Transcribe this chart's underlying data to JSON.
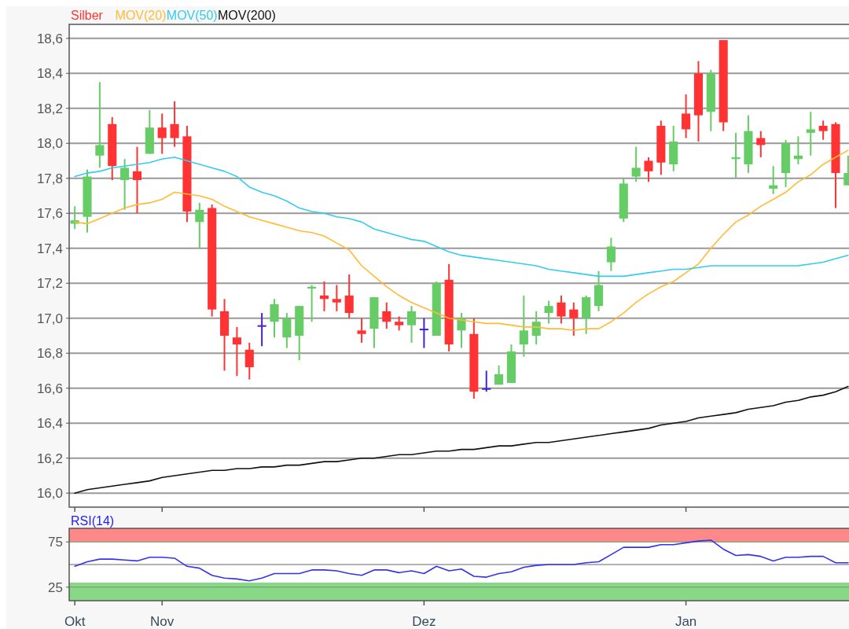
{
  "chart_data": [
    {
      "type": "candlestick",
      "categories": [
        null,
        null,
        null,
        null,
        null,
        null,
        null,
        null,
        null,
        null,
        null,
        null,
        null,
        null,
        null,
        null,
        null,
        null,
        null,
        null,
        null,
        null,
        null,
        null,
        null,
        null,
        null,
        null,
        null,
        null,
        null,
        null,
        null,
        null,
        null,
        null,
        null,
        null,
        null,
        null,
        null,
        null,
        null,
        null,
        null,
        null,
        null,
        null,
        null,
        null,
        null,
        null,
        null,
        null,
        null,
        null,
        null,
        null,
        null,
        null,
        null,
        null,
        null
      ],
      "series": [
        {
          "name": "Silber",
          "color": "#ff3333",
          "colors": [
            "#66cc66",
            "#66cc66",
            "#66cc66",
            "#ff3333",
            "#66cc66",
            "#ff3333",
            "#66cc66",
            "#ff3333",
            "#ff3333",
            "#ff3333",
            "#66cc66",
            "#ff3333",
            "#ff3333",
            "#ff3333",
            "#ff3333",
            "#4422cc",
            "#66cc66",
            "#66cc66",
            "#66cc66",
            "#66cc66",
            "#ff3333",
            "#ff3333",
            "#ff3333",
            "#ff3333",
            "#66cc66",
            "#ff3333",
            "#ff3333",
            "#66cc66",
            "#4422cc",
            "#66cc66",
            "#ff3333",
            "#66cc66",
            "#ff3333",
            "#4422cc",
            "#66cc66",
            "#66cc66",
            "#66cc66",
            "#66cc66",
            "#66cc66",
            "#ff3333",
            "#ff3333",
            "#66cc66",
            "#66cc66",
            "#66cc66",
            "#66cc66",
            "#66cc66",
            "#ff3333",
            "#ff3333",
            "#66cc66",
            "#ff3333",
            "#ff3333",
            "#66cc66",
            "#ff3333",
            "#66cc66",
            "#66cc66",
            "#ff3333",
            "#66cc66",
            "#66cc66",
            "#66cc66",
            "#66cc66",
            "#ff3333",
            "#ff3333",
            "#66cc66"
          ],
          "ohlc": [
            [
              17.54,
              17.64,
              17.51,
              17.56
            ],
            [
              17.58,
              17.85,
              17.49,
              17.81
            ],
            [
              17.93,
              18.35,
              17.86,
              17.99
            ],
            [
              18.11,
              18.15,
              17.79,
              17.87
            ],
            [
              17.79,
              17.91,
              17.62,
              17.86
            ],
            [
              17.84,
              17.98,
              17.6,
              17.79
            ],
            [
              17.94,
              18.19,
              17.94,
              18.09
            ],
            [
              18.09,
              18.17,
              17.94,
              18.03
            ],
            [
              18.11,
              18.24,
              17.98,
              18.03
            ],
            [
              18.04,
              18.1,
              17.55,
              17.61
            ],
            [
              17.55,
              17.66,
              17.4,
              17.62
            ],
            [
              17.63,
              17.65,
              17.01,
              17.05
            ],
            [
              17.04,
              17.11,
              16.7,
              16.9
            ],
            [
              16.89,
              16.95,
              16.67,
              16.85
            ],
            [
              16.82,
              16.86,
              16.65,
              16.72
            ],
            [
              16.96,
              17.03,
              16.84,
              16.96
            ],
            [
              16.98,
              17.11,
              16.89,
              17.08
            ],
            [
              16.89,
              17.03,
              16.83,
              17.0
            ],
            [
              16.9,
              17.07,
              16.76,
              17.07
            ],
            [
              17.17,
              17.19,
              16.98,
              17.18
            ],
            [
              17.13,
              17.21,
              17.04,
              17.11
            ],
            [
              17.11,
              17.19,
              17.04,
              17.09
            ],
            [
              17.13,
              17.25,
              17.0,
              17.03
            ],
            [
              16.93,
              17.0,
              16.86,
              16.91
            ],
            [
              16.94,
              17.12,
              16.83,
              17.12
            ],
            [
              17.04,
              17.09,
              16.94,
              16.98
            ],
            [
              16.98,
              17.01,
              16.93,
              16.96
            ],
            [
              16.96,
              17.07,
              16.86,
              17.04
            ],
            [
              16.94,
              17.0,
              16.83,
              16.94
            ],
            [
              16.9,
              17.21,
              16.9,
              17.2
            ],
            [
              17.22,
              17.31,
              16.81,
              16.85
            ],
            [
              16.93,
              17.03,
              16.83,
              17.0
            ],
            [
              16.91,
              17.0,
              16.54,
              16.58
            ],
            [
              16.6,
              16.7,
              16.58,
              16.6
            ],
            [
              16.62,
              16.73,
              16.62,
              16.68
            ],
            [
              16.63,
              16.85,
              16.63,
              16.81
            ],
            [
              16.85,
              17.13,
              16.78,
              16.93
            ],
            [
              16.9,
              17.04,
              16.85,
              16.98
            ],
            [
              17.03,
              17.1,
              16.97,
              17.07
            ],
            [
              17.09,
              17.13,
              16.97,
              17.01
            ],
            [
              17.05,
              17.09,
              16.9,
              17.0
            ],
            [
              17.0,
              17.13,
              16.91,
              17.12
            ],
            [
              17.07,
              17.27,
              17.04,
              17.19
            ],
            [
              17.32,
              17.46,
              17.27,
              17.41
            ],
            [
              17.57,
              17.8,
              17.55,
              17.77
            ],
            [
              17.81,
              17.98,
              17.78,
              17.86
            ],
            [
              17.9,
              17.92,
              17.78,
              17.84
            ],
            [
              18.1,
              18.13,
              17.82,
              17.89
            ],
            [
              17.88,
              18.1,
              17.84,
              18.01
            ],
            [
              18.17,
              18.28,
              18.03,
              18.08
            ],
            [
              18.4,
              18.47,
              18.01,
              18.16
            ],
            [
              18.18,
              18.42,
              18.07,
              18.4
            ],
            [
              18.59,
              18.59,
              18.07,
              18.12
            ],
            [
              17.91,
              18.06,
              17.8,
              17.92
            ],
            [
              17.88,
              18.16,
              17.83,
              18.07
            ],
            [
              18.03,
              18.07,
              17.92,
              17.99
            ],
            [
              17.74,
              17.87,
              17.71,
              17.76
            ],
            [
              17.83,
              18.02,
              17.75,
              18.0
            ],
            [
              17.91,
              18.04,
              17.88,
              17.93
            ],
            [
              18.06,
              18.18,
              17.93,
              18.08
            ],
            [
              18.1,
              18.13,
              18.02,
              18.07
            ],
            [
              18.11,
              18.12,
              17.63,
              17.83
            ],
            [
              17.76,
              17.93,
              17.76,
              17.83
            ]
          ]
        },
        {
          "name": "MOV(20)",
          "type": "line",
          "color": "#ffbb33",
          "values": [
            17.55,
            17.54,
            17.57,
            17.6,
            17.63,
            17.65,
            17.66,
            17.68,
            17.72,
            17.71,
            17.7,
            17.68,
            17.64,
            17.61,
            17.58,
            17.56,
            17.54,
            17.52,
            17.5,
            17.49,
            17.47,
            17.43,
            17.39,
            17.3,
            17.24,
            17.18,
            17.13,
            17.09,
            17.06,
            17.03,
            17.0,
            16.99,
            16.98,
            16.97,
            16.97,
            16.96,
            16.95,
            16.95,
            16.94,
            16.94,
            16.93,
            16.94,
            16.94,
            16.98,
            17.03,
            17.09,
            17.14,
            17.18,
            17.21,
            17.26,
            17.31,
            17.4,
            17.48,
            17.55,
            17.59,
            17.64,
            17.68,
            17.72,
            17.78,
            17.82,
            17.88,
            17.92,
            17.96
          ]
        },
        {
          "name": "MOV(50)",
          "type": "line",
          "color": "#33ccee",
          "values": [
            17.81,
            17.83,
            17.84,
            17.86,
            17.87,
            17.88,
            17.89,
            17.91,
            17.92,
            17.9,
            17.88,
            17.86,
            17.84,
            17.81,
            17.75,
            17.72,
            17.7,
            17.67,
            17.63,
            17.61,
            17.6,
            17.58,
            17.57,
            17.55,
            17.51,
            17.49,
            17.47,
            17.45,
            17.44,
            17.41,
            17.38,
            17.36,
            17.35,
            17.34,
            17.33,
            17.32,
            17.31,
            17.3,
            17.28,
            17.27,
            17.26,
            17.25,
            17.24,
            17.24,
            17.24,
            17.25,
            17.26,
            17.27,
            17.28,
            17.28,
            17.29,
            17.3,
            17.3,
            17.3,
            17.3,
            17.3,
            17.3,
            17.3,
            17.3,
            17.31,
            17.32,
            17.34,
            17.36
          ]
        },
        {
          "name": "MOV(200)",
          "type": "line",
          "color": "#111111",
          "values": [
            16.0,
            16.02,
            16.03,
            16.04,
            16.05,
            16.06,
            16.07,
            16.09,
            16.1,
            16.11,
            16.12,
            16.13,
            16.13,
            16.14,
            16.14,
            16.15,
            16.15,
            16.16,
            16.16,
            16.17,
            16.18,
            16.18,
            16.19,
            16.2,
            16.2,
            16.21,
            16.22,
            16.22,
            16.23,
            16.24,
            16.24,
            16.25,
            16.25,
            16.26,
            16.27,
            16.27,
            16.28,
            16.29,
            16.29,
            16.3,
            16.31,
            16.32,
            16.33,
            16.34,
            16.35,
            16.36,
            16.37,
            16.39,
            16.4,
            16.41,
            16.43,
            16.44,
            16.45,
            16.46,
            16.48,
            16.49,
            16.5,
            16.52,
            16.53,
            16.55,
            16.56,
            16.58,
            16.61
          ]
        }
      ],
      "ylim": [
        15.92,
        18.68
      ],
      "yticks": [
        {
          "value": 16,
          "label": "16,0"
        },
        {
          "value": 16.2,
          "label": "16,2"
        },
        {
          "value": 16.4,
          "label": "16,4"
        },
        {
          "value": 16.6,
          "label": "16,6"
        },
        {
          "value": 16.8,
          "label": "16,8"
        },
        {
          "value": 17,
          "label": "17,0"
        },
        {
          "value": 17.2,
          "label": "17,2"
        },
        {
          "value": 17.4,
          "label": "17,4"
        },
        {
          "value": 17.6,
          "label": "17,6"
        },
        {
          "value": 17.8,
          "label": "17,8"
        },
        {
          "value": 18,
          "label": "18,0"
        },
        {
          "value": 18.2,
          "label": "18,2"
        },
        {
          "value": 18.4,
          "label": "18,4"
        },
        {
          "value": 18.6,
          "label": "18,6"
        }
      ],
      "grid": "y",
      "legend": "top left",
      "tick_labels": "y"
    },
    {
      "type": "line",
      "title": "RSI(14)",
      "categories": [
        "Okt",
        null,
        null,
        null,
        null,
        null,
        null,
        "Nov",
        null,
        null,
        null,
        null,
        null,
        null,
        null,
        null,
        null,
        null,
        null,
        null,
        null,
        null,
        null,
        null,
        null,
        null,
        null,
        null,
        "Dez",
        null,
        null,
        null,
        null,
        null,
        null,
        null,
        null,
        null,
        null,
        null,
        null,
        null,
        null,
        null,
        null,
        null,
        null,
        null,
        null,
        "Jan",
        null,
        null,
        null,
        null,
        null,
        null,
        null,
        null,
        null,
        null,
        null,
        null,
        null
      ],
      "series": [
        {
          "color": "#3333ee",
          "values": [
            48,
            53,
            56,
            56,
            55,
            54,
            58,
            58,
            57,
            48,
            46,
            38,
            35,
            34,
            32,
            35,
            40,
            40,
            40,
            44,
            44,
            43,
            40,
            38,
            44,
            44,
            41,
            43,
            40,
            48,
            43,
            45,
            37,
            36,
            40,
            42,
            47,
            49,
            50,
            50,
            50,
            52,
            53,
            61,
            69,
            69,
            69,
            72,
            72,
            74,
            76,
            77,
            67,
            60,
            61,
            59,
            54,
            58,
            58,
            59,
            59,
            52,
            52
          ]
        }
      ],
      "ylim": [
        10,
        90
      ],
      "yticks": [
        25,
        75
      ],
      "grid": "y",
      "bands": [
        {
          "axis": "y",
          "from": 75,
          "to": 90,
          "color": "#ff8888"
        },
        {
          "axis": "y",
          "from": 10,
          "to": 30,
          "color": "#88d888"
        }
      ],
      "ref_lines": [
        {
          "axis": "y",
          "value": 50,
          "color": "#999999"
        }
      ]
    }
  ]
}
